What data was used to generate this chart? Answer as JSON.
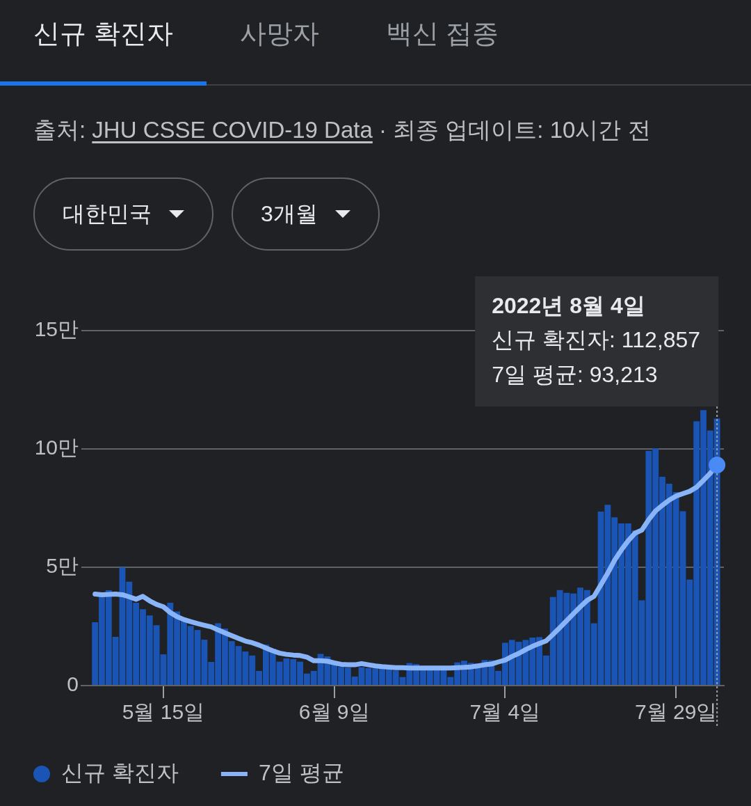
{
  "chart_data": {
    "type": "bar",
    "title": "신규 확진자",
    "subtitle": "출처: JHU CSSE COVID-19 Data · 최종 업데이트: 10시간 전",
    "annotations": [
      "사망자",
      "백신 접종",
      "대한민국",
      "3개월",
      "2022년 8월 4일\n신규 확진자: 112,857\n7일 평균: 93,213"
    ],
    "x": [
      "2022-05-05",
      "2022-05-06",
      "2022-05-07",
      "2022-05-08",
      "2022-05-09",
      "2022-05-10",
      "2022-05-11",
      "2022-05-12",
      "2022-05-13",
      "2022-05-14",
      "2022-05-15",
      "2022-05-16",
      "2022-05-17",
      "2022-05-18",
      "2022-05-19",
      "2022-05-20",
      "2022-05-21",
      "2022-05-22",
      "2022-05-23",
      "2022-05-24",
      "2022-05-25",
      "2022-05-26",
      "2022-05-27",
      "2022-05-28",
      "2022-05-29",
      "2022-05-30",
      "2022-05-31",
      "2022-06-01",
      "2022-06-02",
      "2022-06-03",
      "2022-06-04",
      "2022-06-05",
      "2022-06-06",
      "2022-06-07",
      "2022-06-08",
      "2022-06-09",
      "2022-06-10",
      "2022-06-11",
      "2022-06-12",
      "2022-06-13",
      "2022-06-14",
      "2022-06-15",
      "2022-06-16",
      "2022-06-17",
      "2022-06-18",
      "2022-06-19",
      "2022-06-20",
      "2022-06-21",
      "2022-06-22",
      "2022-06-23",
      "2022-06-24",
      "2022-06-25",
      "2022-06-26",
      "2022-06-27",
      "2022-06-28",
      "2022-06-29",
      "2022-06-30",
      "2022-07-01",
      "2022-07-02",
      "2022-07-03",
      "2022-07-04",
      "2022-07-05",
      "2022-07-06",
      "2022-07-07",
      "2022-07-08",
      "2022-07-09",
      "2022-07-10",
      "2022-07-11",
      "2022-07-12",
      "2022-07-13",
      "2022-07-14",
      "2022-07-15",
      "2022-07-16",
      "2022-07-17",
      "2022-07-18",
      "2022-07-19",
      "2022-07-20",
      "2022-07-21",
      "2022-07-22",
      "2022-07-23",
      "2022-07-24",
      "2022-07-25",
      "2022-07-26",
      "2022-07-27",
      "2022-07-28",
      "2022-07-29",
      "2022-07-30",
      "2022-07-31",
      "2022-08-01",
      "2022-08-02",
      "2022-08-03",
      "2022-08-04"
    ],
    "xlim": [
      "2022-05-03",
      "2022-08-05"
    ],
    "xticks": [
      {
        "value": "2022-05-15",
        "label": "5월 15일"
      },
      {
        "value": "2022-06-09",
        "label": "6월 9일"
      },
      {
        "value": "2022-07-04",
        "label": "7월 4일"
      },
      {
        "value": "2022-07-29",
        "label": "7월 29일"
      }
    ],
    "ylim": [
      0,
      15
    ],
    "yticks": [
      0,
      {
        "value": 5,
        "label": "5만"
      },
      {
        "value": 10,
        "label": "10만"
      },
      {
        "value": 15,
        "label": "15만"
      }
    ],
    "series": [
      {
        "name": "신규 확진자",
        "color": "#1a54b4",
        "values": [
          2.68,
          3.8,
          4.03,
          2.06,
          4.99,
          4.39,
          3.5,
          3.23,
          2.96,
          2.55,
          1.32,
          3.5,
          3.13,
          2.85,
          2.52,
          2.35,
          1.94,
          1,
          2.63,
          2.41,
          1.88,
          1.67,
          1.44,
          1.27,
          0.62,
          1.73,
          1.55,
          1.01,
          1.15,
          1.12,
          1.01,
          0.51,
          0.62,
          1.34,
          1.23,
          0.88,
          0.79,
          0.76,
          0.38,
          0.78,
          0.74,
          0.72,
          0.71,
          0.71,
          0.64,
          0.36,
          0.95,
          0.91,
          0.71,
          0.7,
          0.7,
          0.7,
          0.36,
          0.98,
          1.05,
          0.96,
          0.93,
          1.08,
          1.07,
          0.62,
          1.81,
          1.93,
          1.85,
          1.93,
          2.03,
          2.05,
          1.27,
          3.74,
          4.04,
          3.92,
          3.89,
          4.14,
          4.04,
          2.63,
          7.35,
          7.64,
          7.11,
          6.85,
          6.85,
          6.56,
          3.6,
          9.92,
          10.03,
          8.82,
          8.53,
          8.18,
          7.37,
          4.48,
          11.17,
          11.64,
          10.78,
          11.29
        ]
      },
      {
        "name": "7일 평균",
        "type": "line",
        "color": "#8ab4f8",
        "values": [
          3.87,
          3.84,
          3.85,
          3.87,
          3.84,
          3.75,
          3.65,
          3.77,
          3.58,
          3.43,
          3.33,
          3.09,
          2.91,
          2.79,
          2.7,
          2.62,
          2.55,
          2.48,
          2.35,
          2.23,
          2.11,
          1.99,
          1.88,
          1.81,
          1.71,
          1.59,
          1.47,
          1.37,
          1.32,
          1.29,
          1.27,
          1.2,
          1.05,
          1.05,
          1.03,
          0.96,
          0.9,
          0.88,
          0.88,
          0.93,
          0.88,
          0.83,
          0.8,
          0.78,
          0.76,
          0.76,
          0.74,
          0.74,
          0.74,
          0.74,
          0.74,
          0.74,
          0.74,
          0.76,
          0.77,
          0.79,
          0.83,
          0.88,
          0.91,
          1,
          1.08,
          1.23,
          1.36,
          1.52,
          1.66,
          1.78,
          1.89,
          2.16,
          2.45,
          2.74,
          3.04,
          3.33,
          3.6,
          3.77,
          4.26,
          4.75,
          5.29,
          5.73,
          6.12,
          6.44,
          6.57,
          7.01,
          7.38,
          7.62,
          7.84,
          8.01,
          8.11,
          8.21,
          8.38,
          8.67,
          8.97,
          9.32
        ]
      }
    ],
    "ref_lines": [
      {
        "axis": "x",
        "value": "2022-08-04",
        "color": "#9aa0a6",
        "line_style": "dotted"
      }
    ],
    "grid": "y",
    "legend": "bottom left",
    "marker": "none"
  }
}
